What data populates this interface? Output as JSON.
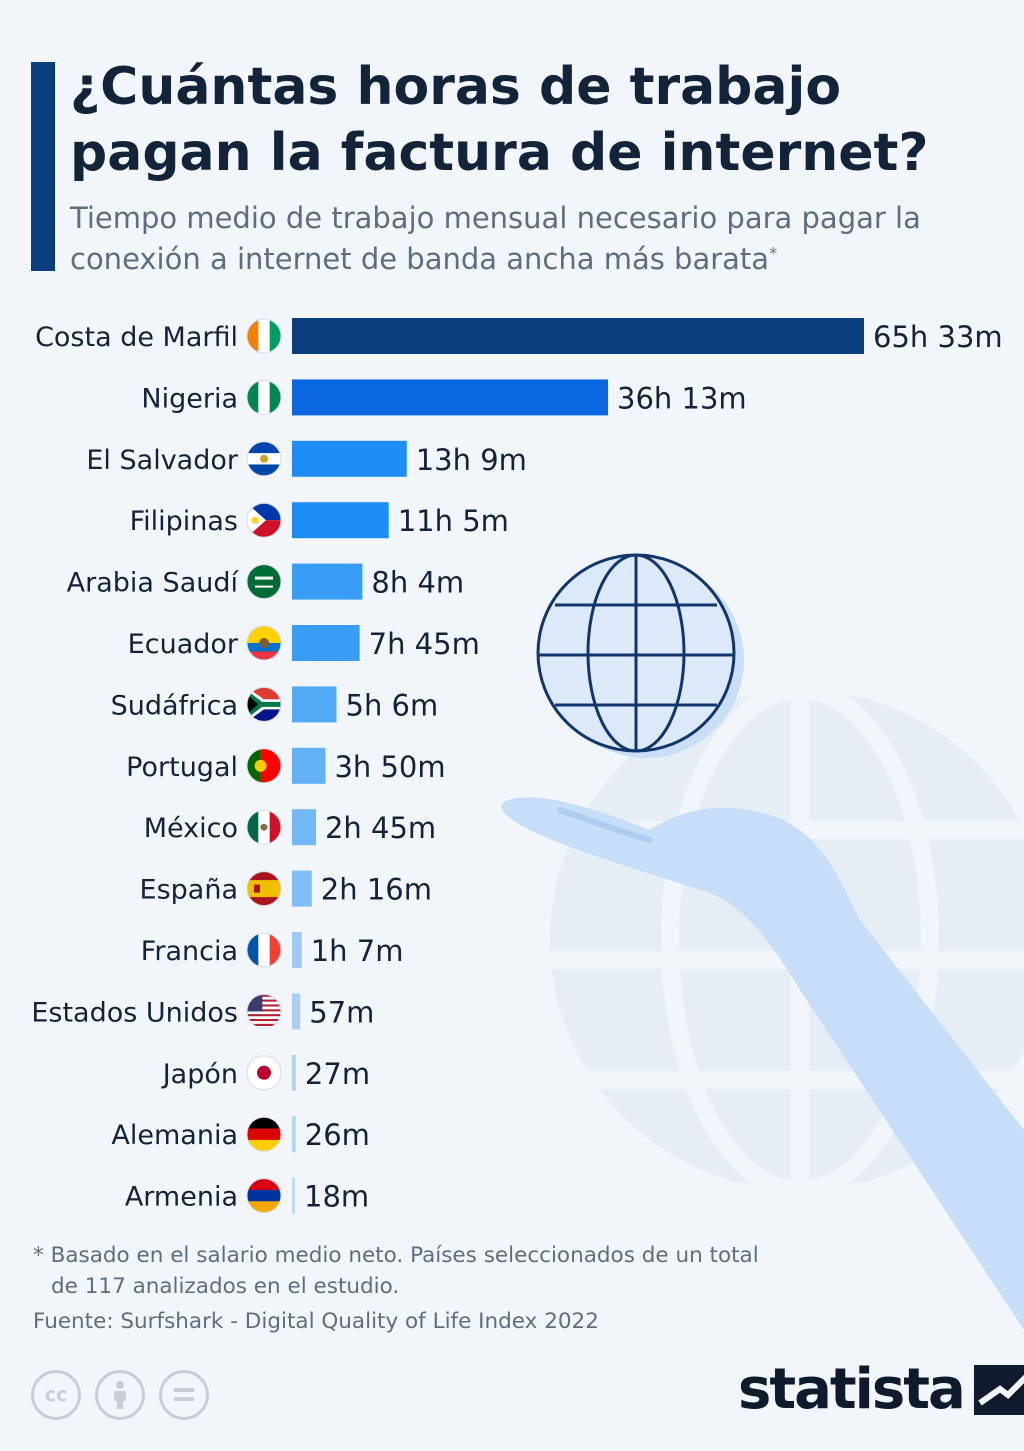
{
  "header": {
    "title": "¿Cuántas horas de trabajo pagan la factura de internet?",
    "subtitle": "Tiempo medio de trabajo mensual necesario para pagar la conexión a internet de banda ancha más barata",
    "subtitle_mark": "*"
  },
  "chart_data": {
    "type": "bar",
    "orientation": "horizontal",
    "unit": "hours",
    "categories": [
      "Costa de Marfil",
      "Nigeria",
      "El Salvador",
      "Filipinas",
      "Arabia Saudí",
      "Ecuador",
      "Sudáfrica",
      "Portugal",
      "México",
      "España",
      "Francia",
      "Estados Unidos",
      "Japón",
      "Alemania",
      "Armenia"
    ],
    "values": [
      65.55,
      36.217,
      13.15,
      11.083,
      8.067,
      7.75,
      5.1,
      3.833,
      2.75,
      2.267,
      1.117,
      0.95,
      0.45,
      0.433,
      0.3
    ],
    "data_labels": [
      "65h 33m",
      "36h 13m",
      "13h 9m",
      "11h 5m",
      "8h 4m",
      "7h 45m",
      "5h 6m",
      "3h 50m",
      "2h 45m",
      "2h 16m",
      "1h 7m",
      "57m",
      "27m",
      "26m",
      "18m"
    ],
    "flag_icons": [
      "flag-cote-divoire-icon",
      "flag-nigeria-icon",
      "flag-el-salvador-icon",
      "flag-philippines-icon",
      "flag-saudi-arabia-icon",
      "flag-ecuador-icon",
      "flag-south-africa-icon",
      "flag-portugal-icon",
      "flag-mexico-icon",
      "flag-spain-icon",
      "flag-france-icon",
      "flag-usa-icon",
      "flag-japan-icon",
      "flag-germany-icon",
      "flag-armenia-icon"
    ],
    "bar_colors": [
      "#0a3d7e",
      "#0b67e0",
      "#1e8ef5",
      "#1e8ef5",
      "#3a9df5",
      "#3a9df5",
      "#52a9f6",
      "#63b1f6",
      "#72b8f6",
      "#80bff6",
      "#9fccf5",
      "#a9d0f2",
      "#b3d5f0",
      "#b3d5f0",
      "#bcd9f0"
    ],
    "xlim": [
      0,
      65.55
    ],
    "grid": false,
    "legend": "none"
  },
  "footer": {
    "note_line1": "* Basado en el salario medio neto. Países seleccionados de un total",
    "note_line2": "de 117 analizados en el estudio.",
    "source": "Fuente: Surfshark - Digital Quality of Life Index 2022",
    "license_icons": [
      "cc-icon",
      "attribution-icon",
      "no-derivatives-icon"
    ],
    "brand": "statista",
    "brand_icon": "statista-logo-icon"
  },
  "colors": {
    "accent": "#0a3d7e",
    "title": "#13233a",
    "text": "#5d6e82",
    "background": "#f2f6fa"
  }
}
